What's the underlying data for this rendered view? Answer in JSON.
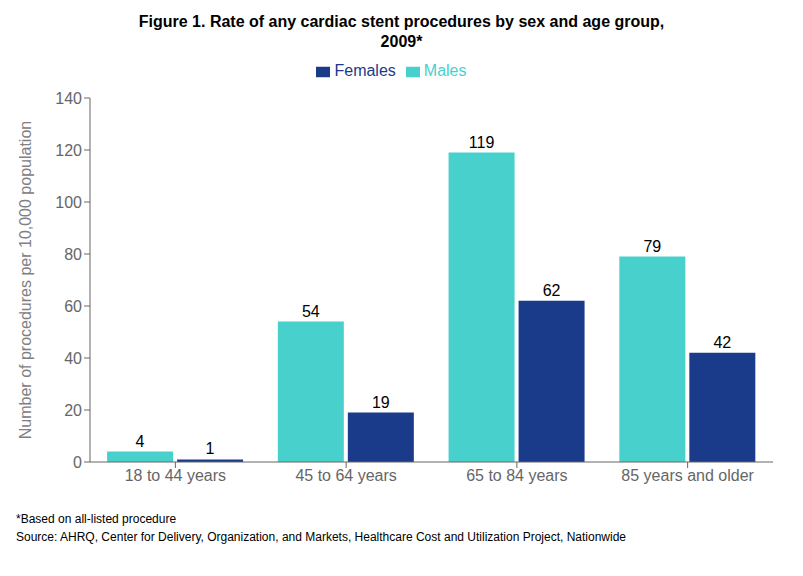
{
  "chart_data": {
    "type": "bar",
    "title": "Figure 1. Rate of any cardiac stent procedures by sex and age group,\n2009*",
    "ylabel": "Number of procedures per 10,000 population",
    "categories": [
      "18 to 44 years",
      "45 to 64 years",
      "65 to 84 years",
      "85 years and older"
    ],
    "series": [
      {
        "name": "Males",
        "color": "#48D1CC",
        "values": [
          4,
          54,
          119,
          79
        ]
      },
      {
        "name": "Females",
        "color": "#1A3A8A",
        "values": [
          1,
          19,
          62,
          42
        ]
      }
    ],
    "ylim": [
      0,
      140
    ],
    "yticks": [
      0,
      20,
      40,
      60,
      80,
      100,
      120,
      140
    ],
    "data_labels": true,
    "grid": false,
    "legend": "top",
    "annotations": [
      "*Based on all-listed procedure",
      "Source: AHRQ, Center for Delivery, Organization, and Markets, Healthcare Cost and Utilization Project, Nationwide"
    ]
  }
}
